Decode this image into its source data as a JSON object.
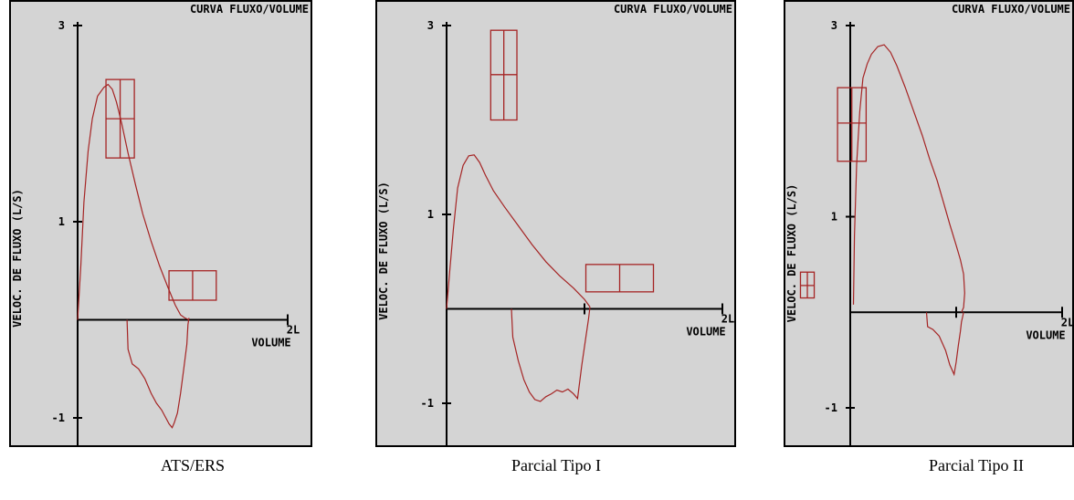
{
  "chart_data": [
    {
      "type": "line",
      "caption": "ATS/ERS",
      "screen_title": "CURVA FLUXO/VOLUME",
      "ylabel": "VELOC. DE FLUXO (L/S)",
      "xlabel": "VOLUME",
      "y_ticks": [
        {
          "value": 3,
          "label": "3"
        },
        {
          "value": 1,
          "label": "1"
        },
        {
          "value": -1,
          "label": "-1"
        }
      ],
      "x_ticks": [
        {
          "value": 2,
          "label": "2L"
        }
      ],
      "xlim": [
        0,
        2.2
      ],
      "ylim": [
        -1.3,
        3.2
      ],
      "series": [
        {
          "role": "expiratory",
          "x": [
            0.0,
            0.03,
            0.06,
            0.1,
            0.14,
            0.19,
            0.25,
            0.29,
            0.33,
            0.37,
            0.42,
            0.48,
            0.55,
            0.62,
            0.7,
            0.78,
            0.86,
            0.93,
            0.98,
            1.02,
            1.06
          ],
          "y": [
            0.0,
            0.55,
            1.2,
            1.72,
            2.05,
            2.28,
            2.37,
            2.4,
            2.35,
            2.22,
            2.0,
            1.7,
            1.38,
            1.08,
            0.8,
            0.55,
            0.33,
            0.15,
            0.05,
            0.02,
            0.0
          ]
        },
        {
          "role": "inspiratory",
          "x": [
            0.47,
            0.48,
            0.52,
            0.58,
            0.64,
            0.7,
            0.75,
            0.8,
            0.84,
            0.87,
            0.9,
            0.92,
            0.95,
            0.98,
            1.01,
            1.04,
            1.05,
            1.06
          ],
          "y": [
            0.0,
            -0.3,
            -0.45,
            -0.5,
            -0.6,
            -0.75,
            -0.85,
            -0.92,
            -1.0,
            -1.06,
            -1.1,
            -1.05,
            -0.95,
            -0.75,
            -0.5,
            -0.25,
            -0.05,
            0.02
          ]
        }
      ],
      "targets": [
        {
          "x_range": [
            0.27,
            0.54
          ],
          "y_range": [
            1.65,
            2.45
          ],
          "center": [
            0.405,
            2.05
          ]
        },
        {
          "x_range": [
            0.87,
            1.32
          ],
          "y_range": [
            0.2,
            0.5
          ],
          "center": [
            1.095,
            0.35
          ]
        }
      ]
    },
    {
      "type": "line",
      "caption": "Parcial Tipo I",
      "screen_title": "CURVA FLUXO/VOLUME",
      "ylabel": "VELOC. DE FLUXO (L/S)",
      "xlabel": "VOLUME",
      "y_ticks": [
        {
          "value": 3,
          "label": "3"
        },
        {
          "value": 1,
          "label": "1"
        },
        {
          "value": -1,
          "label": "-1"
        }
      ],
      "x_ticks": [
        {
          "value": 1,
          "label": ""
        },
        {
          "value": 2,
          "label": "2L"
        }
      ],
      "xlim": [
        0,
        2.2
      ],
      "ylim": [
        -1.3,
        3.2
      ],
      "series": [
        {
          "role": "expiratory",
          "x": [
            0.0,
            0.02,
            0.05,
            0.08,
            0.12,
            0.16,
            0.2,
            0.24,
            0.28,
            0.34,
            0.42,
            0.52,
            0.62,
            0.72,
            0.82,
            0.92,
            1.0,
            1.04
          ],
          "y": [
            0.0,
            0.35,
            0.85,
            1.28,
            1.52,
            1.62,
            1.63,
            1.55,
            1.42,
            1.25,
            1.08,
            0.88,
            0.68,
            0.5,
            0.35,
            0.22,
            0.1,
            0.02
          ]
        },
        {
          "role": "inspiratory",
          "x": [
            0.47,
            0.48,
            0.52,
            0.56,
            0.6,
            0.64,
            0.68,
            0.72,
            0.76,
            0.8,
            0.84,
            0.88,
            0.92,
            0.95,
            0.98,
            1.01,
            1.03,
            1.04
          ],
          "y": [
            0.0,
            -0.3,
            -0.55,
            -0.75,
            -0.88,
            -0.96,
            -0.98,
            -0.93,
            -0.9,
            -0.86,
            -0.88,
            -0.85,
            -0.9,
            -0.95,
            -0.6,
            -0.3,
            -0.1,
            0.02
          ]
        }
      ],
      "targets": [
        {
          "x_range": [
            0.32,
            0.51
          ],
          "y_range": [
            2.0,
            2.95
          ],
          "center": [
            0.415,
            2.48
          ]
        },
        {
          "x_range": [
            1.01,
            1.5
          ],
          "y_range": [
            0.18,
            0.47
          ],
          "center": [
            1.255,
            0.32
          ]
        }
      ]
    },
    {
      "type": "line",
      "caption": "Parcial Tipo II",
      "screen_title": "CURVA FLUXO/VOLUME",
      "ylabel": "VELOC. DE FLUXO (L/S)",
      "xlabel": "VOLUME",
      "y_ticks": [
        {
          "value": 3,
          "label": "3"
        },
        {
          "value": 1,
          "label": "1"
        },
        {
          "value": -1,
          "label": "-1"
        }
      ],
      "x_ticks": [
        {
          "value": 1,
          "label": ""
        },
        {
          "value": 2,
          "label": "2L"
        }
      ],
      "xlim": [
        -0.55,
        2.2
      ],
      "ylim": [
        -1.3,
        3.2
      ],
      "series": [
        {
          "role": "expiratory",
          "x": [
            0.03,
            0.04,
            0.06,
            0.09,
            0.12,
            0.16,
            0.2,
            0.26,
            0.32,
            0.38,
            0.44,
            0.52,
            0.6,
            0.68,
            0.75,
            0.82,
            0.88,
            0.94,
            1.0,
            1.04,
            1.07,
            1.08,
            1.07,
            1.05
          ],
          "y": [
            0.08,
            0.8,
            1.55,
            2.1,
            2.45,
            2.6,
            2.7,
            2.78,
            2.8,
            2.72,
            2.58,
            2.35,
            2.1,
            1.85,
            1.6,
            1.38,
            1.15,
            0.92,
            0.7,
            0.55,
            0.4,
            0.2,
            0.05,
            0.0
          ]
        },
        {
          "role": "inspiratory",
          "x": [
            0.72,
            0.73,
            0.78,
            0.84,
            0.9,
            0.94,
            0.98,
            1.0,
            1.02,
            1.04,
            1.05,
            1.06,
            1.07
          ],
          "y": [
            0.0,
            -0.15,
            -0.18,
            -0.25,
            -0.4,
            -0.55,
            -0.65,
            -0.52,
            -0.35,
            -0.2,
            -0.1,
            -0.05,
            0.0
          ]
        }
      ],
      "targets": [
        {
          "x_range": [
            -0.12,
            0.15
          ],
          "y_range": [
            1.58,
            2.35
          ],
          "center": [
            0.015,
            1.98
          ]
        },
        {
          "x_range": [
            -0.47,
            -0.34
          ],
          "y_range": [
            0.15,
            0.42
          ],
          "center": [
            -0.405,
            0.28
          ]
        }
      ]
    }
  ],
  "colors": {
    "screen_bg": "#d4d4d4",
    "curve": "#a52424",
    "axis": "#000000",
    "border": "#000000"
  }
}
